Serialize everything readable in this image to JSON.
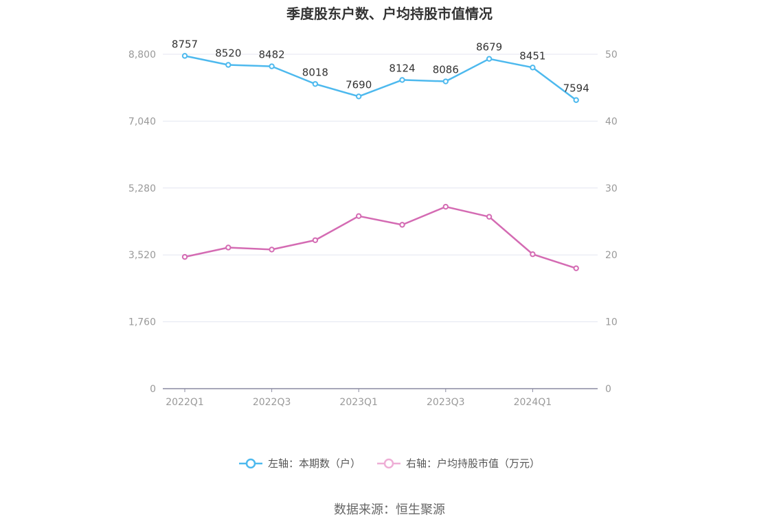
{
  "chart_data": {
    "type": "line",
    "title": "季度股东户数、户均持股市值情况",
    "categories": [
      "2022Q1",
      "2022Q2",
      "2022Q3",
      "2022Q4",
      "2023Q1",
      "2023Q2",
      "2023Q3",
      "2023Q4",
      "2024Q1",
      "2024Q2"
    ],
    "x_tick_labels": [
      "2022Q1",
      "2022Q3",
      "2023Q1",
      "2023Q3",
      "2024Q1"
    ],
    "y_left": {
      "ylim": [
        0,
        8800
      ],
      "ticks": [
        "0",
        "1,760",
        "3,520",
        "5,280",
        "7,040",
        "8,800"
      ]
    },
    "y_right": {
      "ylim": [
        0,
        50
      ],
      "ticks": [
        "0",
        "10",
        "20",
        "30",
        "40",
        "50"
      ]
    },
    "grid": true,
    "legend_position": "bottom",
    "series": [
      {
        "name": "左轴：本期数（户）",
        "axis": "left",
        "color": "#4db9ee",
        "values": [
          8757,
          8520,
          8482,
          8018,
          7690,
          8124,
          8086,
          8679,
          8451,
          7594
        ],
        "labels": [
          "8757",
          "8520",
          "8482",
          "8018",
          "7690",
          "8124",
          "8086",
          "8679",
          "8451",
          "7594"
        ]
      },
      {
        "name": "右轴：户均持股市值（万元）",
        "axis": "right",
        "color": "#d46bb3",
        "values": [
          19.7,
          21.1,
          20.8,
          22.2,
          25.8,
          24.5,
          27.2,
          25.7,
          20.1,
          18.0
        ]
      }
    ]
  },
  "source": "数据来源：恒生聚源"
}
